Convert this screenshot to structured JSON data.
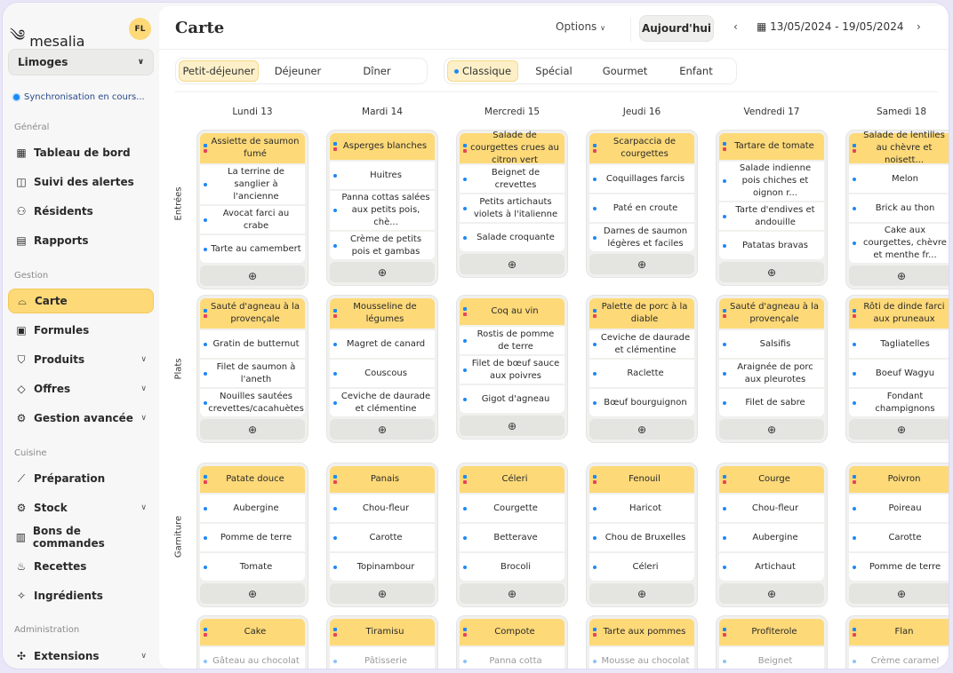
{
  "app": {
    "name": "mesalia",
    "user_initials": "FL",
    "site": "Limoges",
    "sync_status": "Synchronisation en cours..."
  },
  "sidebar": {
    "sections": [
      {
        "label": "Général",
        "items": [
          {
            "label": "Tableau de bord",
            "icon": "dashboard-icon"
          },
          {
            "label": "Suivi des alertes",
            "icon": "alert-icon"
          },
          {
            "label": "Résidents",
            "icon": "users-icon"
          },
          {
            "label": "Rapports",
            "icon": "report-icon"
          }
        ]
      },
      {
        "label": "Gestion",
        "items": [
          {
            "label": "Carte",
            "icon": "cloche-icon",
            "active": true
          },
          {
            "label": "Formules",
            "icon": "formula-icon"
          },
          {
            "label": "Produits",
            "icon": "basket-icon",
            "expandable": true
          },
          {
            "label": "Offres",
            "icon": "tag-icon",
            "expandable": true
          },
          {
            "label": "Gestion avancée",
            "icon": "gear-icon",
            "expandable": true
          }
        ]
      },
      {
        "label": "Cuisine",
        "items": [
          {
            "label": "Préparation",
            "icon": "knife-icon"
          },
          {
            "label": "Stock",
            "icon": "gear-icon",
            "expandable": true
          },
          {
            "label": "Bons de commandes",
            "icon": "receipt-icon"
          },
          {
            "label": "Recettes",
            "icon": "chef-hat-icon"
          },
          {
            "label": "Ingrédients",
            "icon": "carrot-icon"
          }
        ]
      },
      {
        "label": "Administration",
        "items": [
          {
            "label": "Extensions",
            "icon": "puzzle-icon",
            "expandable": true
          }
        ]
      }
    ]
  },
  "header": {
    "title": "Carte",
    "options_label": "Options",
    "today_label": "Aujourd'hui",
    "date_range": "13/05/2024 - 19/05/2024"
  },
  "meal_tabs": [
    {
      "label": "Petit-déjeuner",
      "active": true
    },
    {
      "label": "Déjeuner"
    },
    {
      "label": "Dîner"
    }
  ],
  "menu_tabs": [
    {
      "label": "Classique",
      "active": true
    },
    {
      "label": "Spécial"
    },
    {
      "label": "Gourmet"
    },
    {
      "label": "Enfant"
    }
  ],
  "days": [
    "Lundi 13",
    "Mardi 14",
    "Mercredi 15",
    "Jeudi 16",
    "Vendredi 17",
    "Samedi 18"
  ],
  "rows": [
    {
      "label": "Entrées",
      "cards": [
        {
          "title": "Assiette de saumon fumé",
          "items": [
            "La terrine de sanglier à l'ancienne",
            "Avocat farci au crabe",
            "Tarte au camembert"
          ]
        },
        {
          "title": "Asperges blanches",
          "items": [
            "Huitres",
            "Panna cottas salées aux petits pois, chè...",
            "Crème de petits pois et gambas"
          ]
        },
        {
          "title": "Salade de courgettes crues au citron vert",
          "items": [
            "Beignet de crevettes",
            "Petits artichauts violets à l'italienne",
            "Salade croquante"
          ]
        },
        {
          "title": "Scarpaccia de courgettes",
          "items": [
            "Coquillages farcis",
            "Paté en croute",
            "Darnes de saumon légères et faciles"
          ]
        },
        {
          "title": "Tartare de tomate",
          "items": [
            "Salade indienne pois chiches et oignon r...",
            "Tarte d'endives et andouille",
            "Patatas bravas"
          ]
        },
        {
          "title": "Salade de lentilles au chèvre et noisett...",
          "items": [
            "Melon",
            "Brick au thon",
            "Cake aux courgettes, chèvre et menthe fr..."
          ]
        }
      ]
    },
    {
      "label": "Plats",
      "cards": [
        {
          "title": "Sauté d'agneau à la provençale",
          "items": [
            "Gratin de butternut",
            "Filet de saumon à l'aneth",
            "Nouilles sautées crevettes/cacahuètes"
          ]
        },
        {
          "title": "Mousseline de légumes",
          "items": [
            "Magret de canard",
            "Couscous",
            "Ceviche de daurade et clémentine"
          ]
        },
        {
          "title": "Coq au vin",
          "items": [
            "Rostis de pomme de terre",
            "Filet de bœuf sauce aux poivres",
            "Gigot d'agneau"
          ]
        },
        {
          "title": "Palette de porc à la diable",
          "items": [
            "Ceviche de daurade et clémentine",
            "Raclette",
            "Bœuf bourguignon"
          ]
        },
        {
          "title": "Sauté d'agneau à la provençale",
          "items": [
            "Salsifis",
            "Araignée de porc aux pleurotes",
            "Filet de sabre"
          ]
        },
        {
          "title": "Rôti de dinde farci aux pruneaux",
          "items": [
            "Tagliatelles",
            "Boeuf Wagyu",
            "Fondant champignons"
          ]
        }
      ]
    },
    {
      "label": "Garniture",
      "cards": [
        {
          "title": "Patate douce",
          "items": [
            "Aubergine",
            "Pomme de terre",
            "Tomate"
          ]
        },
        {
          "title": "Panais",
          "items": [
            "Chou-fleur",
            "Carotte",
            "Topinambour"
          ]
        },
        {
          "title": "Céleri",
          "items": [
            "Courgette",
            "Betterave",
            "Brocoli"
          ]
        },
        {
          "title": "Fenouil",
          "items": [
            "Haricot",
            "Chou de Bruxelles",
            "Céleri"
          ]
        },
        {
          "title": "Courge",
          "items": [
            "Chou-fleur",
            "Aubergine",
            "Artichaut"
          ]
        },
        {
          "title": "Poivron",
          "items": [
            "Poireau",
            "Carotte",
            "Pomme de terre"
          ]
        }
      ]
    },
    {
      "label": "",
      "cards": [
        {
          "title": "Cake",
          "items": [
            "Gâteau au chocolat"
          ]
        },
        {
          "title": "Tiramisu",
          "items": [
            "Pâtisserie"
          ]
        },
        {
          "title": "Compote",
          "items": [
            "Panna cotta"
          ]
        },
        {
          "title": "Tarte aux pommes",
          "items": [
            "Mousse au chocolat"
          ]
        },
        {
          "title": "Profiterole",
          "items": [
            "Beignet"
          ]
        },
        {
          "title": "Flan",
          "items": [
            "Crème caramel"
          ]
        }
      ]
    }
  ],
  "add_icon": "plus-circle-icon",
  "colors": {
    "accent": "#fdd978",
    "info_dot": "#1e88f5",
    "alert_dot": "#e8425e",
    "frame": "#e9e6f8"
  }
}
